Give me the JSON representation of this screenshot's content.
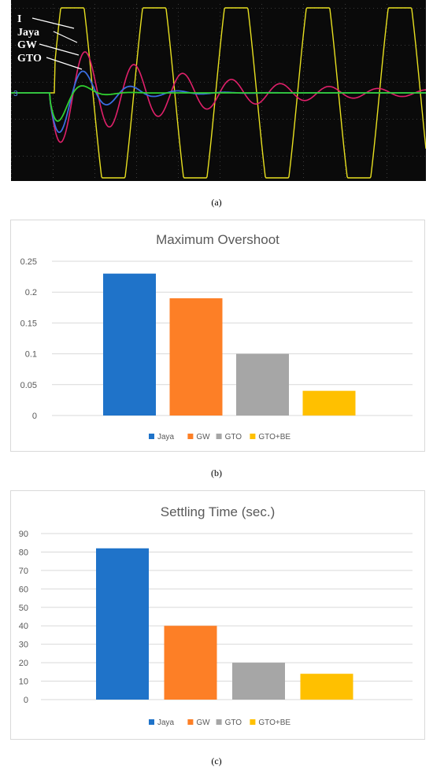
{
  "panel_labels": [
    "(a)",
    "(b)",
    "(c)"
  ],
  "oscilloscope": {
    "traces": [
      {
        "name": "I",
        "color": "#e8e020"
      },
      {
        "name": "Jaya",
        "color": "#e0206a"
      },
      {
        "name": "GW",
        "color": "#3a6de0"
      },
      {
        "name": "GTO",
        "color": "#30d030"
      }
    ],
    "channel_marker": "3"
  },
  "colors": {
    "Jaya": "#1f73c9",
    "GW": "#fd7f26",
    "GTO": "#a6a6a6",
    "GTO+BE": "#ffc000"
  },
  "chart_data": [
    {
      "type": "bar",
      "title": "Maximum Overshoot",
      "categories": [
        "Jaya",
        "GW",
        "GTO",
        "GTO+BE"
      ],
      "values": [
        0.23,
        0.19,
        0.1,
        0.04
      ],
      "ylim": [
        0,
        0.25
      ],
      "yticks": [
        "0",
        "0.05",
        "0.1",
        "0.15",
        "0.2",
        "0.25"
      ],
      "grid": true,
      "legend": "bottom"
    },
    {
      "type": "bar",
      "title": "Settling Time (sec.)",
      "categories": [
        "Jaya",
        "GW",
        "GTO",
        "GTO+BE"
      ],
      "values": [
        82,
        40,
        20,
        14
      ],
      "ylim": [
        0,
        90
      ],
      "yticks": [
        "0",
        "10",
        "20",
        "30",
        "40",
        "50",
        "60",
        "70",
        "80",
        "90"
      ],
      "grid": true,
      "legend": "bottom"
    }
  ]
}
